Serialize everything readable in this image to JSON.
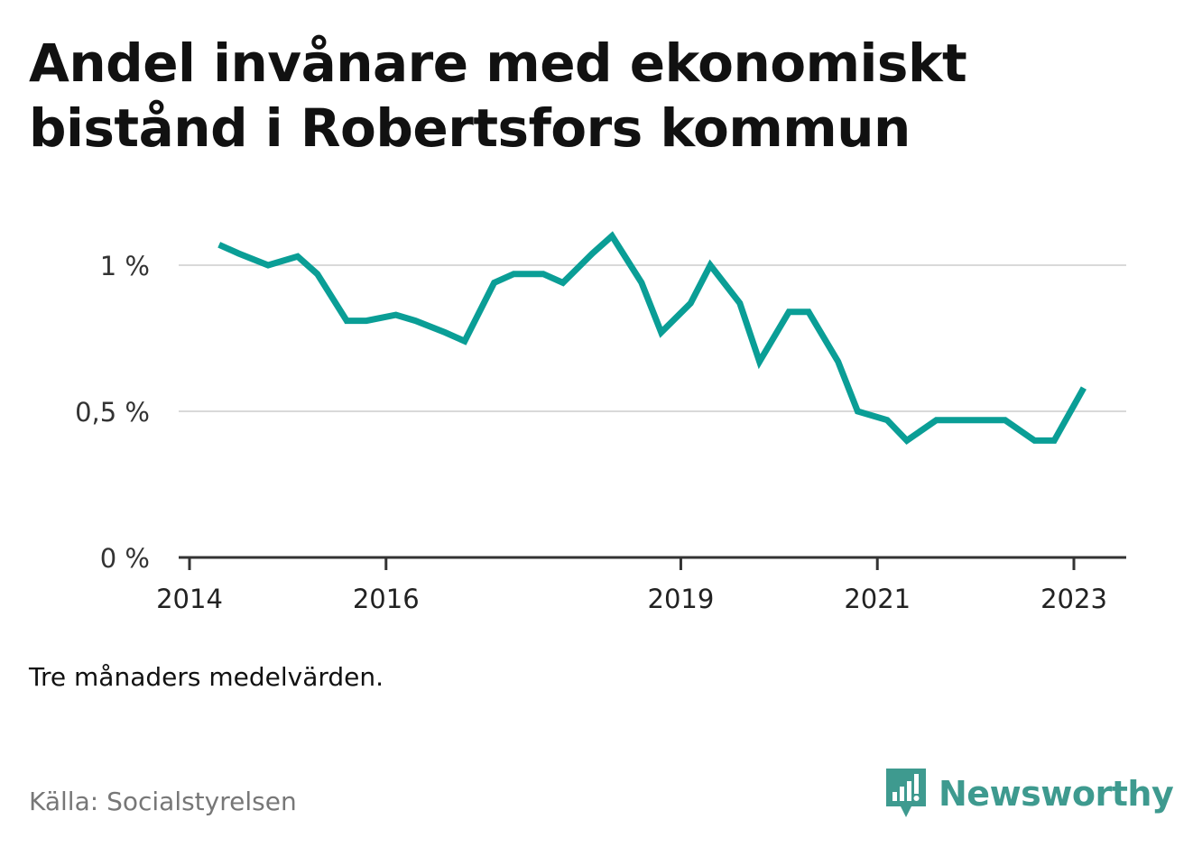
{
  "title_lines": [
    "Andel invånare med ekonomiskt",
    "bistånd i Robertsfors kommun"
  ],
  "note": "Tre månaders medelvärden.",
  "source": "Källa: Socialstyrelsen",
  "brand": {
    "name": "Newsworthy",
    "color": "#3e9a8f",
    "icon": "bar-chart-speech-bubble-icon"
  },
  "chart_data": {
    "type": "line",
    "title": "Andel invånare med ekonomiskt bistånd i Robertsfors kommun",
    "xlabel": "",
    "ylabel": "",
    "ylim": [
      0,
      1.2
    ],
    "grid": true,
    "legend": "none",
    "line_color": "#0a9e96",
    "y_ticks": [
      {
        "value": 0,
        "label": "0 %"
      },
      {
        "value": 0.5,
        "label": "0,5 %"
      },
      {
        "value": 1,
        "label": "1 %"
      }
    ],
    "x_ticks": [
      {
        "value": 2014.0,
        "label": "2014"
      },
      {
        "value": 2016.0,
        "label": "2016"
      },
      {
        "value": 2019.0,
        "label": "2019"
      },
      {
        "value": 2021.0,
        "label": "2021"
      },
      {
        "value": 2023.0,
        "label": "2023"
      }
    ],
    "series": [
      {
        "points": [
          [
            2014.3,
            1.07
          ],
          [
            2014.5,
            1.04
          ],
          [
            2014.8,
            1.0
          ],
          [
            2015.1,
            1.03
          ],
          [
            2015.3,
            0.97
          ],
          [
            2015.6,
            0.81
          ],
          [
            2015.8,
            0.81
          ],
          [
            2016.1,
            0.83
          ],
          [
            2016.3,
            0.81
          ],
          [
            2016.6,
            0.77
          ],
          [
            2016.8,
            0.74
          ],
          [
            2017.1,
            0.94
          ],
          [
            2017.3,
            0.97
          ],
          [
            2017.6,
            0.97
          ],
          [
            2017.8,
            0.94
          ],
          [
            2018.1,
            1.04
          ],
          [
            2018.3,
            1.1
          ],
          [
            2018.6,
            0.94
          ],
          [
            2018.8,
            0.77
          ],
          [
            2019.1,
            0.87
          ],
          [
            2019.3,
            1.0
          ],
          [
            2019.6,
            0.87
          ],
          [
            2019.8,
            0.67
          ],
          [
            2020.1,
            0.84
          ],
          [
            2020.3,
            0.84
          ],
          [
            2020.6,
            0.67
          ],
          [
            2020.8,
            0.5
          ],
          [
            2021.1,
            0.47
          ],
          [
            2021.3,
            0.4
          ],
          [
            2021.6,
            0.47
          ],
          [
            2021.8,
            0.47
          ],
          [
            2022.1,
            0.47
          ],
          [
            2022.3,
            0.47
          ],
          [
            2022.6,
            0.4
          ],
          [
            2022.8,
            0.4
          ],
          [
            2023.1,
            0.58
          ]
        ]
      }
    ]
  }
}
